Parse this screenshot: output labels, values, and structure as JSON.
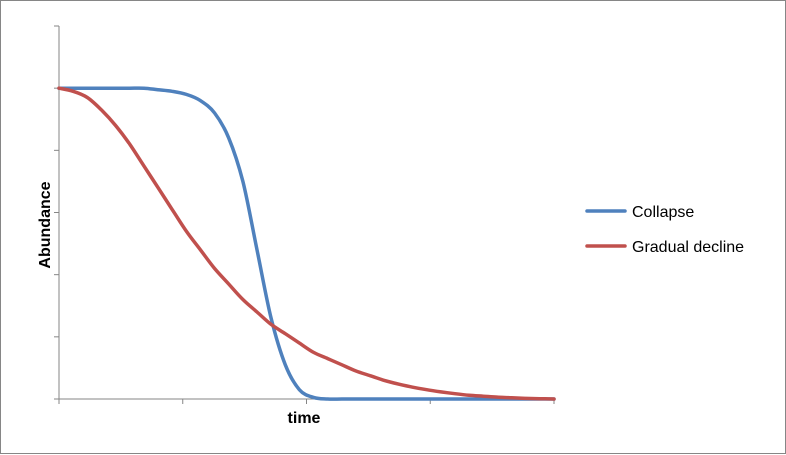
{
  "chart_data": {
    "type": "line",
    "title": "",
    "xlabel": "time",
    "ylabel": "Abundance",
    "x_tick_count": 4,
    "y_tick_count": 5,
    "xlim": [
      0,
      35
    ],
    "ylim": [
      0,
      1.2
    ],
    "grid": false,
    "legend_position": "right",
    "series": [
      {
        "name": "Collapse",
        "color": "#4F81BD",
        "x": [
          0,
          1,
          2,
          3,
          4,
          5,
          6,
          7,
          8,
          9,
          10,
          11,
          12,
          13,
          14,
          15,
          16,
          17,
          18,
          19,
          20,
          21,
          22,
          23,
          24,
          25,
          26,
          27,
          28,
          29,
          30,
          31,
          32,
          33,
          34,
          35
        ],
        "y": [
          1,
          1,
          1,
          1,
          1,
          1,
          1,
          0.995,
          0.99,
          0.98,
          0.96,
          0.92,
          0.84,
          0.7,
          0.48,
          0.26,
          0.11,
          0.03,
          0.005,
          0,
          0,
          0,
          0,
          0,
          0,
          0,
          0,
          0,
          0,
          0,
          0,
          0,
          0,
          0,
          0,
          0
        ]
      },
      {
        "name": "Gradual decline",
        "color": "#C0504D",
        "x": [
          0,
          1,
          2,
          3,
          4,
          5,
          6,
          7,
          8,
          9,
          10,
          11,
          12,
          13,
          14,
          15,
          16,
          17,
          18,
          19,
          20,
          21,
          22,
          23,
          24,
          25,
          26,
          27,
          28,
          29,
          30,
          31,
          32,
          33,
          34,
          35
        ],
        "y": [
          1,
          0.99,
          0.97,
          0.93,
          0.88,
          0.82,
          0.75,
          0.68,
          0.61,
          0.54,
          0.48,
          0.42,
          0.37,
          0.32,
          0.28,
          0.24,
          0.21,
          0.18,
          0.15,
          0.13,
          0.11,
          0.09,
          0.075,
          0.06,
          0.048,
          0.038,
          0.03,
          0.023,
          0.017,
          0.012,
          0.009,
          0.006,
          0.004,
          0.002,
          0.001,
          0
        ]
      }
    ]
  }
}
